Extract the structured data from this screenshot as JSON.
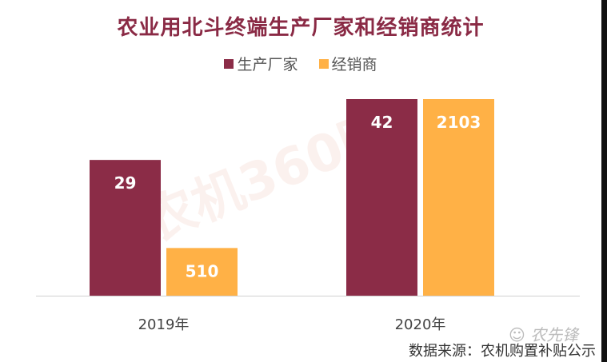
{
  "chart_data": {
    "type": "bar",
    "title": "农业用北斗终端生产厂家和经销商统计",
    "categories": [
      "2019年",
      "2020年"
    ],
    "series": [
      {
        "name": "生产厂家",
        "values": [
          29,
          42
        ],
        "color": "#8b2c47"
      },
      {
        "name": "经销商",
        "values": [
          510,
          2103
        ],
        "color": "#ffb146"
      }
    ],
    "data_labels": true,
    "separate_scales": true,
    "legend_position": "top",
    "grid": false
  },
  "watermark": "农机360网",
  "logo_text": "农先锋",
  "source": "数据来源：农机购置补贴公示"
}
